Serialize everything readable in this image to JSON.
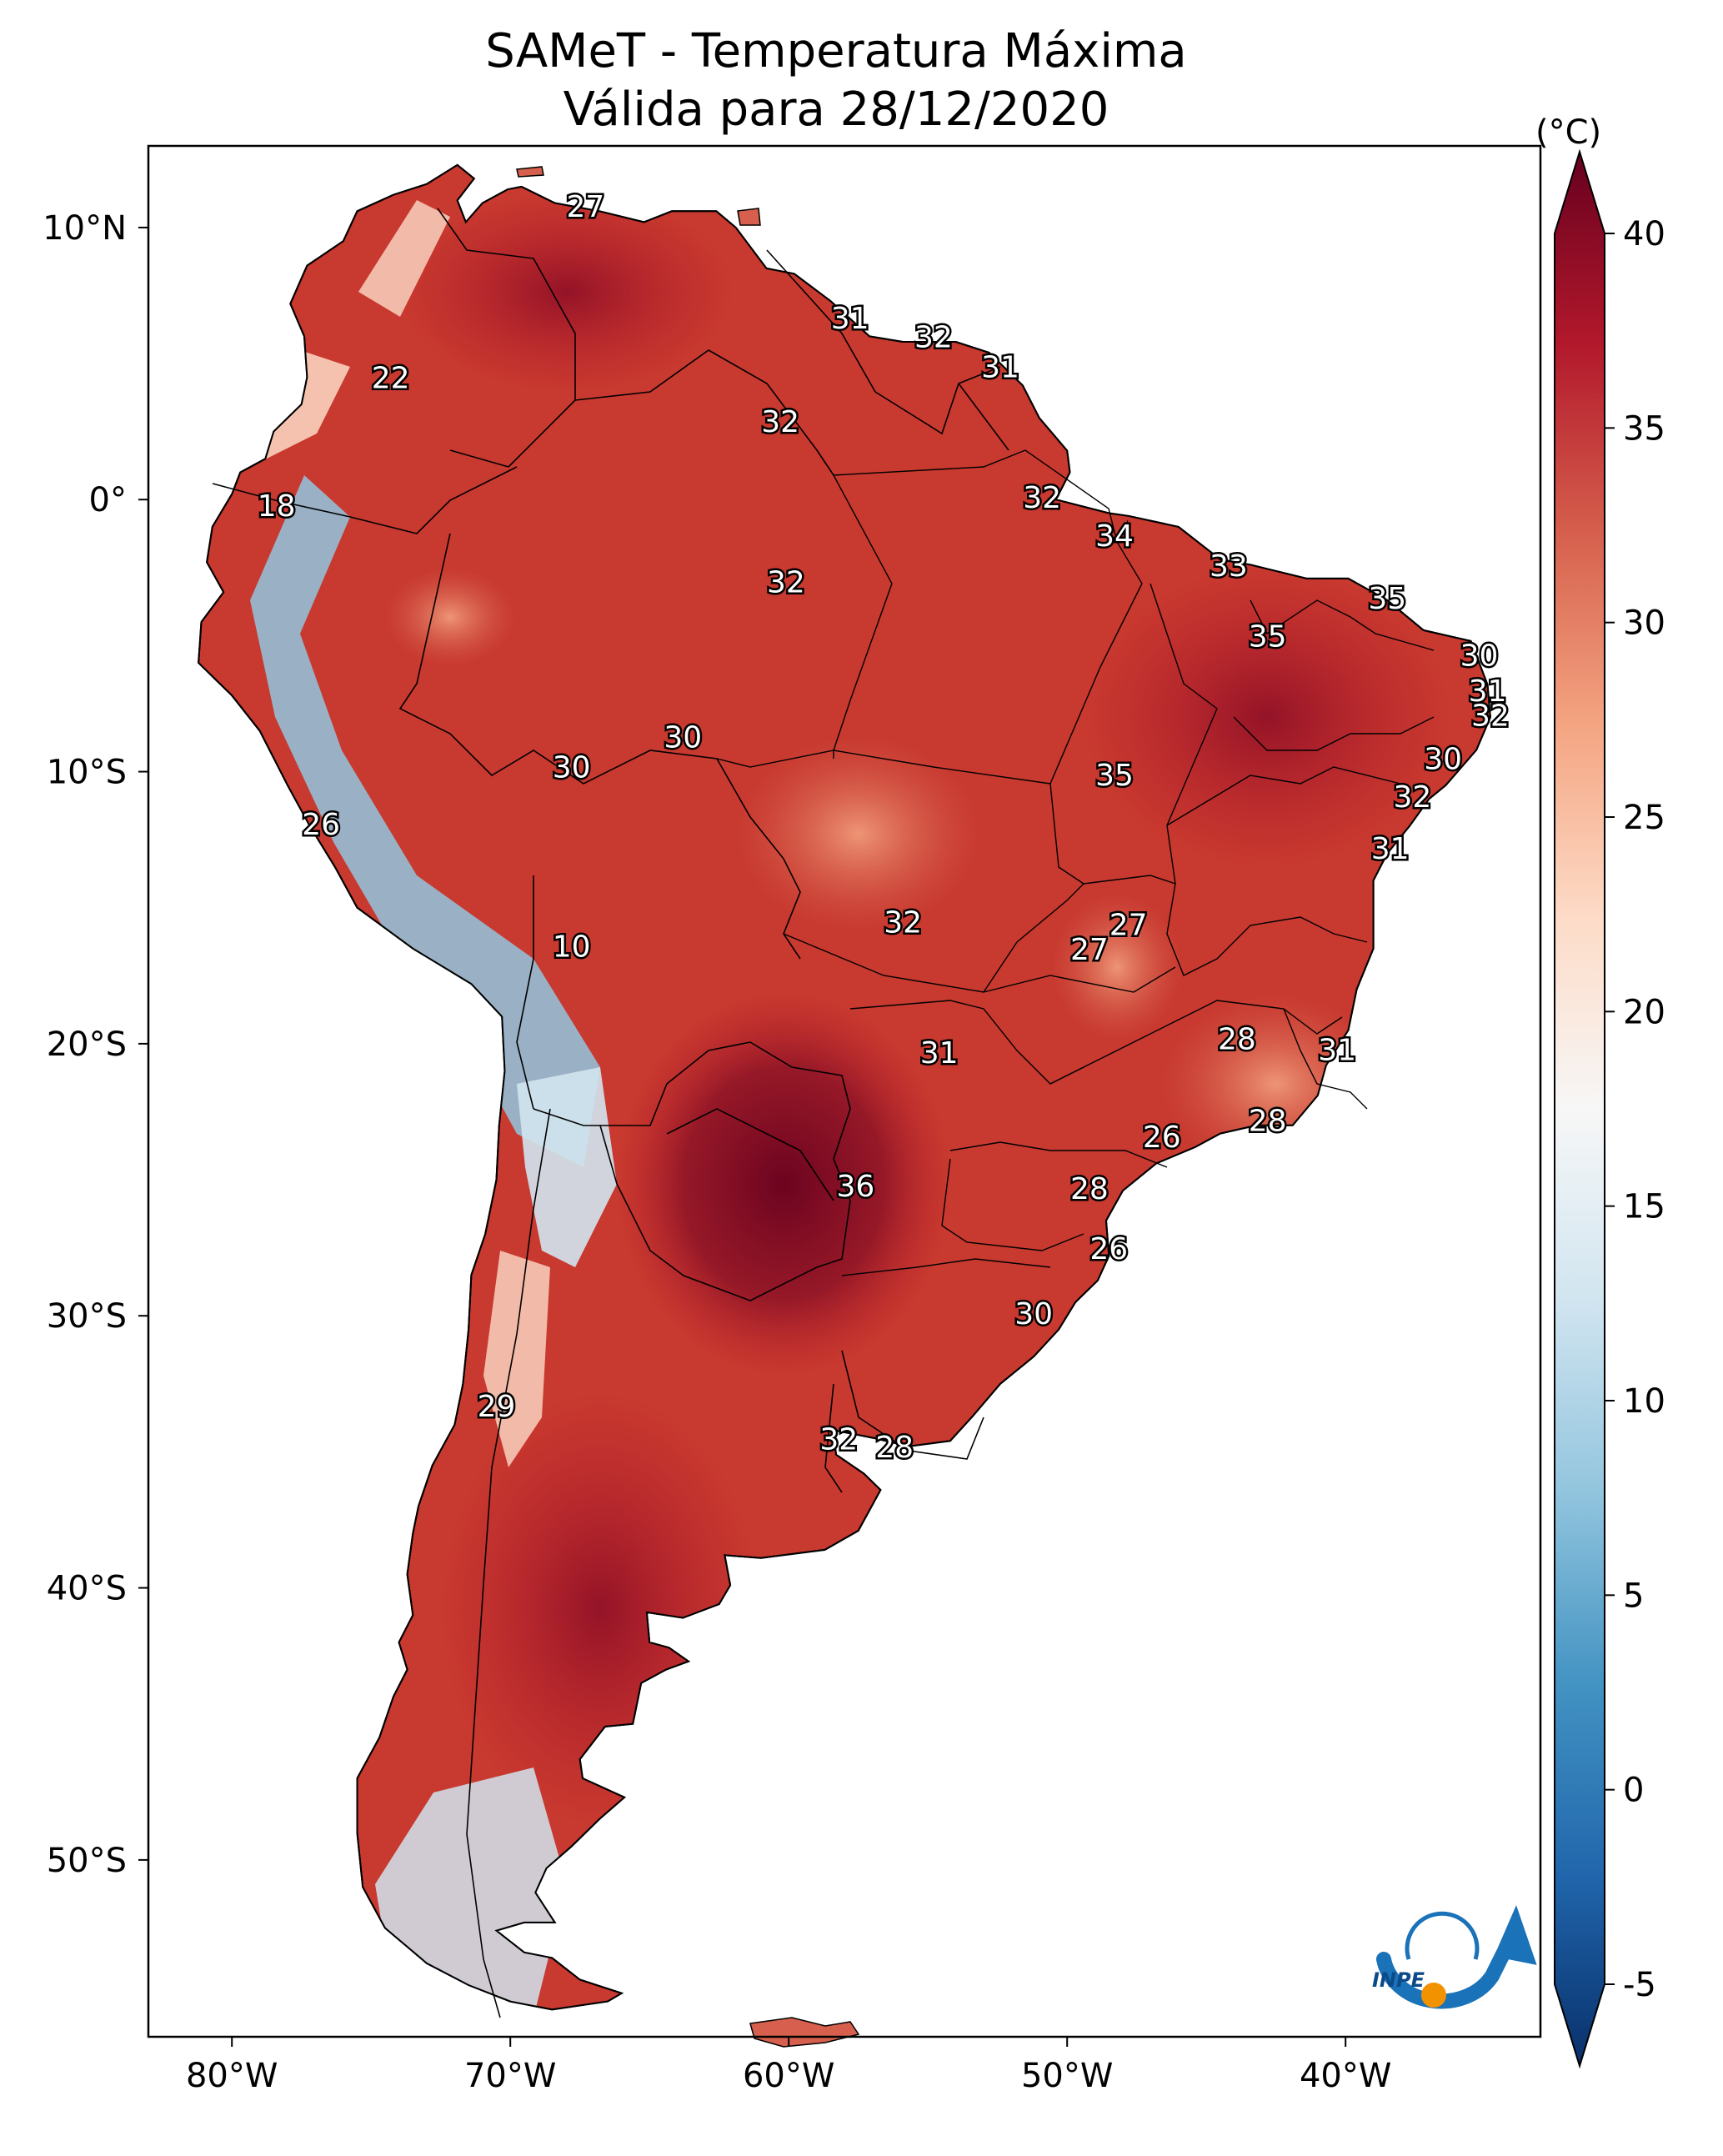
{
  "title": {
    "line1": "SAMeT - Temperatura Máxima",
    "line2": "Válida para 28/12/2020"
  },
  "map": {
    "lon_range": [
      -83,
      -33
    ],
    "lat_range": [
      -56.5,
      13
    ],
    "lon_ticks": [
      {
        "value": -80,
        "label": "80°W"
      },
      {
        "value": -70,
        "label": "70°W"
      },
      {
        "value": -60,
        "label": "60°W"
      },
      {
        "value": -50,
        "label": "50°W"
      },
      {
        "value": -40,
        "label": "40°W"
      }
    ],
    "lat_ticks": [
      {
        "value": 10,
        "label": "10°N"
      },
      {
        "value": 0,
        "label": "0°"
      },
      {
        "value": -10,
        "label": "10°S"
      },
      {
        "value": -20,
        "label": "20°S"
      },
      {
        "value": -30,
        "label": "30°S"
      },
      {
        "value": -40,
        "label": "40°S"
      },
      {
        "value": -50,
        "label": "50°S"
      }
    ],
    "station_labels": [
      {
        "text": "27",
        "lon": -67.3,
        "lat": 10.7
      },
      {
        "text": "31",
        "lon": -57.8,
        "lat": 6.6
      },
      {
        "text": "32",
        "lon": -54.8,
        "lat": 5.9
      },
      {
        "text": "31",
        "lon": -52.4,
        "lat": 4.8
      },
      {
        "text": "22",
        "lon": -74.3,
        "lat": 4.4
      },
      {
        "text": "32",
        "lon": -60.3,
        "lat": 2.8
      },
      {
        "text": "32",
        "lon": -50.9,
        "lat": 0.0
      },
      {
        "text": "18",
        "lon": -78.4,
        "lat": -0.3
      },
      {
        "text": "34",
        "lon": -48.3,
        "lat": -1.4
      },
      {
        "text": "32",
        "lon": -60.1,
        "lat": -3.1
      },
      {
        "text": "33",
        "lon": -44.2,
        "lat": -2.5
      },
      {
        "text": "35",
        "lon": -38.5,
        "lat": -3.7
      },
      {
        "text": "35",
        "lon": -42.8,
        "lat": -5.1
      },
      {
        "text": "30",
        "lon": -35.2,
        "lat": -5.8
      },
      {
        "text": "31",
        "lon": -34.9,
        "lat": -7.1
      },
      {
        "text": "32",
        "lon": -34.8,
        "lat": -8.0
      },
      {
        "text": "30",
        "lon": -63.8,
        "lat": -8.8
      },
      {
        "text": "30",
        "lon": -67.8,
        "lat": -9.9
      },
      {
        "text": "30",
        "lon": -36.5,
        "lat": -9.6
      },
      {
        "text": "35",
        "lon": -48.3,
        "lat": -10.2
      },
      {
        "text": "32",
        "lon": -37.6,
        "lat": -11.0
      },
      {
        "text": "26",
        "lon": -76.8,
        "lat": -12.0
      },
      {
        "text": "31",
        "lon": -38.4,
        "lat": -12.9
      },
      {
        "text": "32",
        "lon": -55.9,
        "lat": -15.6
      },
      {
        "text": "27",
        "lon": -47.8,
        "lat": -15.7
      },
      {
        "text": "27",
        "lon": -49.2,
        "lat": -16.6
      },
      {
        "text": "10",
        "lon": -67.8,
        "lat": -16.5
      },
      {
        "text": "28",
        "lon": -43.9,
        "lat": -19.9
      },
      {
        "text": "31",
        "lon": -54.6,
        "lat": -20.4
      },
      {
        "text": "31",
        "lon": -40.3,
        "lat": -20.3
      },
      {
        "text": "28",
        "lon": -42.8,
        "lat": -22.9
      },
      {
        "text": "26",
        "lon": -46.6,
        "lat": -23.5
      },
      {
        "text": "36",
        "lon": -57.6,
        "lat": -25.3
      },
      {
        "text": "28",
        "lon": -49.2,
        "lat": -25.4
      },
      {
        "text": "26",
        "lon": -48.5,
        "lat": -27.6
      },
      {
        "text": "30",
        "lon": -51.2,
        "lat": -30.0
      },
      {
        "text": "29",
        "lon": -70.5,
        "lat": -33.4
      },
      {
        "text": "32",
        "lon": -58.2,
        "lat": -34.6
      },
      {
        "text": "28",
        "lon": -56.2,
        "lat": -34.9
      }
    ]
  },
  "colorbar": {
    "unit": "(°C)",
    "range": [
      -5,
      40
    ],
    "ticks": [
      "40",
      "35",
      "30",
      "25",
      "20",
      "15",
      "10",
      "5",
      "0",
      "-5"
    ],
    "colors": [
      "#08306b",
      "#2166ac",
      "#4393c3",
      "#92c5de",
      "#d1e5f0",
      "#f7f7f7",
      "#fddbc7",
      "#f4a582",
      "#d6604d",
      "#b2182b",
      "#67001f"
    ]
  },
  "logo": {
    "text": "INPE",
    "colors": {
      "blue": "#1a72b8",
      "orange": "#f39200"
    }
  }
}
